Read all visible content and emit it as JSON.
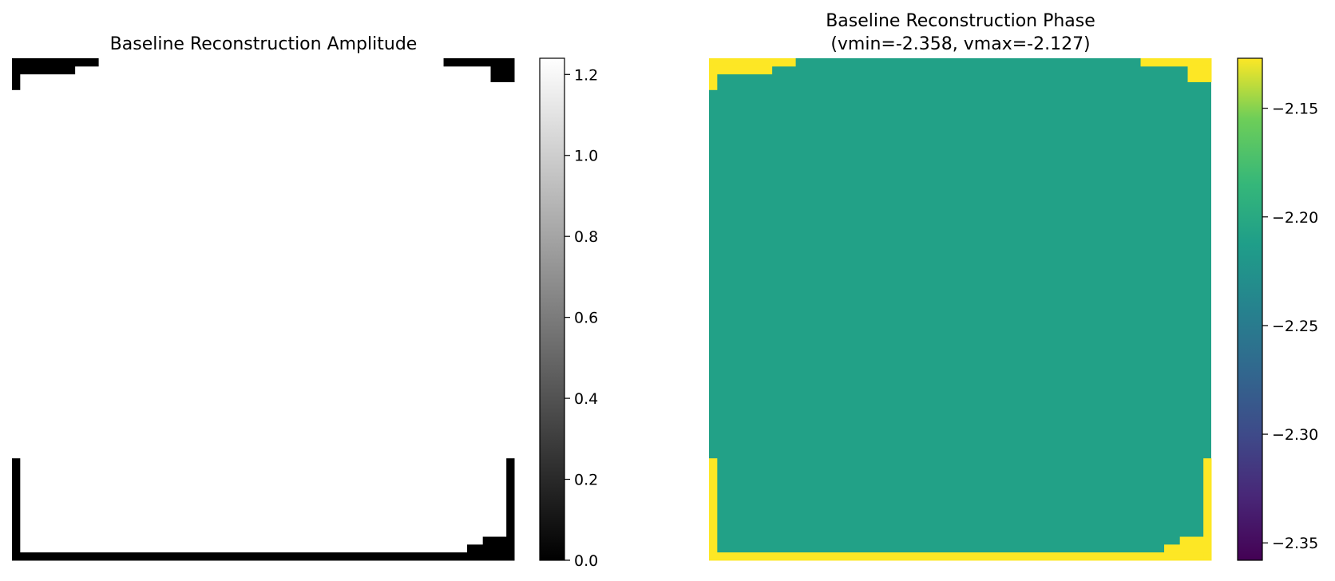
{
  "chart_data": [
    {
      "type": "heatmap",
      "title": "Baseline Reconstruction Amplitude",
      "colormap": "gray",
      "colorbar": {
        "range": [
          0.0,
          1.24
        ],
        "ticks": [
          0.0,
          0.2,
          0.4,
          0.6,
          0.8,
          1.0,
          1.2
        ],
        "tick_labels": [
          "0.0",
          "0.2",
          "0.4",
          "0.6",
          "0.8",
          "1.0",
          "1.2"
        ]
      },
      "grid_size": [
        64,
        64
      ],
      "background_value": 1.24,
      "edge_value": 0.0,
      "edge_cells": [
        {
          "x": [
            0,
            10
          ],
          "y": [
            0,
            0
          ]
        },
        {
          "x": [
            0,
            7
          ],
          "y": [
            1,
            1
          ]
        },
        {
          "x": [
            0,
            0
          ],
          "y": [
            2,
            3
          ]
        },
        {
          "x": [
            55,
            63
          ],
          "y": [
            0,
            0
          ]
        },
        {
          "x": [
            61,
            63
          ],
          "y": [
            1,
            2
          ]
        },
        {
          "x": [
            0,
            0
          ],
          "y": [
            51,
            63
          ]
        },
        {
          "x": [
            0,
            63
          ],
          "y": [
            63,
            63
          ]
        },
        {
          "x": [
            63,
            63
          ],
          "y": [
            51,
            63
          ]
        },
        {
          "x": [
            60,
            63
          ],
          "y": [
            61,
            62
          ]
        },
        {
          "x": [
            58,
            59
          ],
          "y": [
            62,
            62
          ]
        }
      ]
    },
    {
      "type": "heatmap",
      "title": "Baseline Reconstruction Phase",
      "subtitle": "(vmin=-2.358, vmax=-2.127)",
      "colormap": "viridis",
      "colorbar": {
        "range": [
          -2.358,
          -2.127
        ],
        "ticks": [
          -2.15,
          -2.2,
          -2.25,
          -2.3,
          -2.35
        ],
        "tick_labels": [
          "−2.15",
          "−2.20",
          "−2.25",
          "−2.30",
          "−2.35"
        ]
      },
      "grid_size": [
        64,
        64
      ],
      "background_value": -2.21,
      "edge_value": -2.127,
      "edge_cells": [
        {
          "x": [
            0,
            10
          ],
          "y": [
            0,
            0
          ]
        },
        {
          "x": [
            0,
            7
          ],
          "y": [
            1,
            1
          ]
        },
        {
          "x": [
            0,
            0
          ],
          "y": [
            2,
            3
          ]
        },
        {
          "x": [
            55,
            63
          ],
          "y": [
            0,
            0
          ]
        },
        {
          "x": [
            61,
            63
          ],
          "y": [
            1,
            2
          ]
        },
        {
          "x": [
            0,
            0
          ],
          "y": [
            51,
            63
          ]
        },
        {
          "x": [
            0,
            63
          ],
          "y": [
            63,
            63
          ]
        },
        {
          "x": [
            63,
            63
          ],
          "y": [
            51,
            63
          ]
        },
        {
          "x": [
            60,
            63
          ],
          "y": [
            61,
            62
          ]
        },
        {
          "x": [
            58,
            59
          ],
          "y": [
            62,
            62
          ]
        }
      ]
    }
  ]
}
